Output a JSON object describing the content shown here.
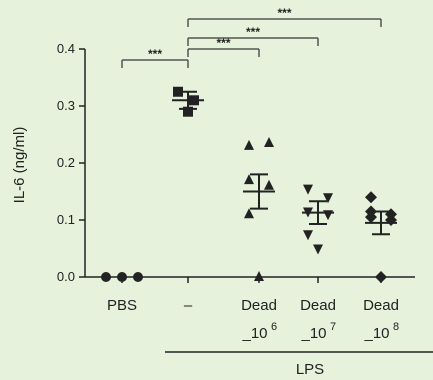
{
  "chart_data": {
    "type": "scatter",
    "title": "",
    "ylabel": "IL-6 (ng/ml)",
    "ylim": [
      0,
      0.4
    ],
    "yticks": [
      "0.0",
      "0.1",
      "0.2",
      "0.3",
      "0.4"
    ],
    "group_label": "LPS",
    "grid": false,
    "colors": {
      "background": "#e6f2dc",
      "ink": "#222222",
      "significance": "#555555"
    },
    "categories": [
      {
        "label": "PBS",
        "label2": "",
        "sup": "",
        "marker": "circle"
      },
      {
        "label": "–",
        "label2": "",
        "sup": "",
        "marker": "square"
      },
      {
        "label": "Dead",
        "label2": "_10",
        "sup": "6",
        "marker": "triangle-up"
      },
      {
        "label": "Dead",
        "label2": "_10",
        "sup": "7",
        "marker": "triangle-down"
      },
      {
        "label": "Dead",
        "label2": "_10",
        "sup": "8",
        "marker": "diamond"
      }
    ],
    "series": [
      {
        "points": [
          0.0,
          0.0,
          0.0
        ],
        "mean": 0.0,
        "sem": 0.0
      },
      {
        "points": [
          0.325,
          0.31,
          0.29
        ],
        "mean": 0.31,
        "sem": 0.015
      },
      {
        "points": [
          0.23,
          0.235,
          0.17,
          0.16,
          0.11,
          0.0
        ],
        "mean": 0.15,
        "sem": 0.03
      },
      {
        "points": [
          0.155,
          0.14,
          0.115,
          0.11,
          0.075,
          0.05
        ],
        "mean": 0.113,
        "sem": 0.02
      },
      {
        "points": [
          0.115,
          0.11,
          0.105,
          0.1,
          0.14,
          0.0
        ],
        "mean": 0.095,
        "sem": 0.02
      }
    ],
    "significance": [
      {
        "from": 0,
        "to": 1,
        "label": "***"
      },
      {
        "from": 1,
        "to": 2,
        "label": "***"
      },
      {
        "from": 1,
        "to": 3,
        "label": "***"
      },
      {
        "from": 1,
        "to": 4,
        "label": "***"
      }
    ]
  }
}
